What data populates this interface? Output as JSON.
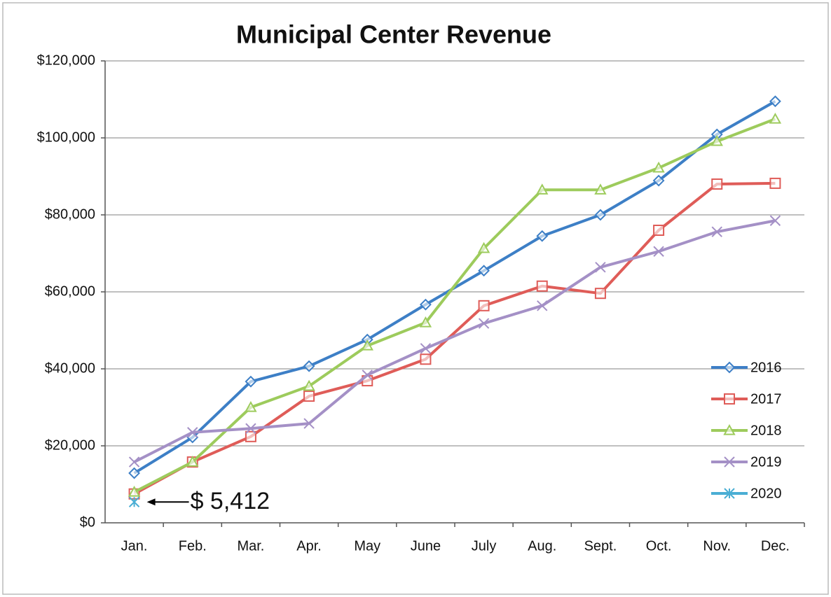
{
  "chart_data": {
    "type": "line",
    "title": "Municipal Center Revenue",
    "categories": [
      "Jan.",
      "Feb.",
      "Mar.",
      "Apr.",
      "May",
      "June",
      "July",
      "Aug.",
      "Sept.",
      "Oct.",
      "Nov.",
      "Dec."
    ],
    "series": [
      {
        "name": "2016",
        "color": "#3d7fc6",
        "marker": "diamond",
        "values": [
          12900,
          22200,
          36700,
          40700,
          47600,
          56700,
          65500,
          74500,
          80000,
          88900,
          100900,
          109500
        ]
      },
      {
        "name": "2017",
        "color": "#df5c58",
        "marker": "square",
        "values": [
          7500,
          15800,
          22400,
          32900,
          36900,
          42500,
          56400,
          61500,
          59600,
          76000,
          88000,
          88200
        ]
      },
      {
        "name": "2018",
        "color": "#9dcb5c",
        "marker": "triangle",
        "values": [
          8000,
          15800,
          30000,
          35500,
          46000,
          52000,
          71300,
          86500,
          86500,
          92200,
          99100,
          104900
        ]
      },
      {
        "name": "2019",
        "color": "#a490c6",
        "marker": "x",
        "values": [
          15800,
          23500,
          24500,
          25800,
          38400,
          45300,
          51800,
          56400,
          66400,
          70500,
          75600,
          78500
        ]
      },
      {
        "name": "2020",
        "color": "#4aaed4",
        "marker": "asterisk",
        "values": [
          5412,
          null,
          null,
          null,
          null,
          null,
          null,
          null,
          null,
          null,
          null,
          null
        ],
        "value_labels": [
          "$ 5,412",
          null,
          null,
          null,
          null,
          null,
          null,
          null,
          null,
          null,
          null,
          null
        ]
      }
    ],
    "ylim": [
      0,
      120000
    ],
    "yticks": [
      {
        "value": 0,
        "label": "$0"
      },
      {
        "value": 20000,
        "label": "$20,000"
      },
      {
        "value": 40000,
        "label": "$40,000"
      },
      {
        "value": 60000,
        "label": "$60,000"
      },
      {
        "value": 80000,
        "label": "$80,000"
      },
      {
        "value": 100000,
        "label": "$100,000"
      },
      {
        "value": 120000,
        "label": "$120,000"
      }
    ],
    "grid": true,
    "legend": "lower right"
  }
}
